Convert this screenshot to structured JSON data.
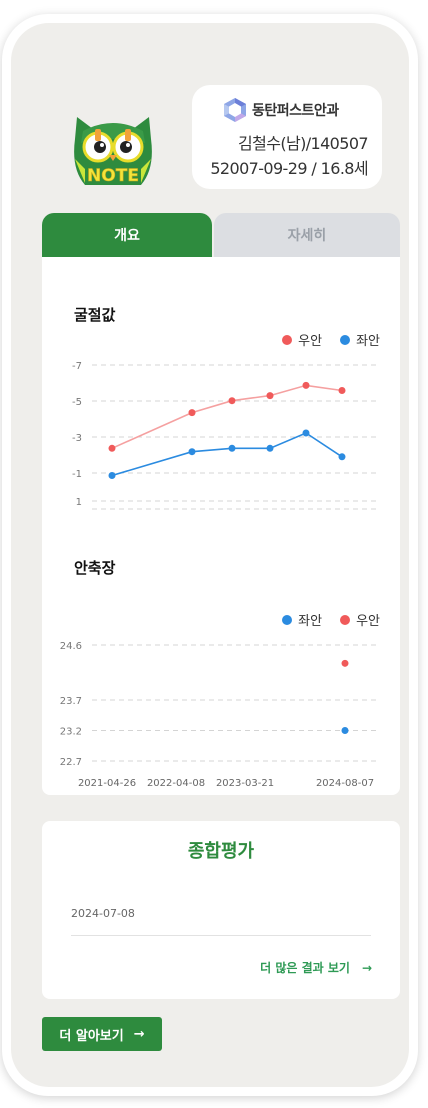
{
  "header": {
    "hospital_name": "동탄퍼스트안과",
    "patient_line1": "김철수(남)/140507",
    "patient_line2": "52007-09-29 / 16.8세",
    "logo_text": "NOTE"
  },
  "tabs": [
    {
      "label": "개요",
      "active": true
    },
    {
      "label": "자세히",
      "active": false
    }
  ],
  "colors": {
    "brand_green": "#2e8b3e",
    "right_eye": "#f05a5a",
    "left_eye": "#2b8be0"
  },
  "chart_data": [
    {
      "type": "line",
      "title": "굴절값",
      "y_ticks": [
        "-7",
        "-5",
        "-3",
        "-1",
        "1"
      ],
      "ylim": [
        1,
        -7
      ],
      "legend_position": "top-right",
      "grid": true,
      "series": [
        {
          "name": "우안",
          "color": "#f05a5a",
          "values": [
            -2.1,
            -4.2,
            -4.9,
            -5.2,
            -5.8,
            -5.5
          ]
        },
        {
          "name": "좌안",
          "color": "#2b8be0",
          "values": [
            -0.5,
            -1.9,
            -2.1,
            -2.1,
            -3.0,
            -1.6
          ]
        }
      ],
      "x_index": [
        0,
        1,
        2,
        3,
        4,
        5
      ]
    },
    {
      "type": "scatter",
      "title": "안축장",
      "y_ticks": [
        "24.6",
        "23.7",
        "23.2",
        "22.7"
      ],
      "ylim": [
        22.7,
        24.6
      ],
      "legend_position": "top-right",
      "grid": true,
      "x_labels": [
        "2021-04-26",
        "2022-04-08",
        "2023-03-21",
        "2024-08-07"
      ],
      "series": [
        {
          "name": "좌안",
          "color": "#2b8be0",
          "points": [
            {
              "x": "2024-08-07",
              "y": 23.2
            }
          ]
        },
        {
          "name": "우안",
          "color": "#f05a5a",
          "points": [
            {
              "x": "2024-08-07",
              "y": 24.3
            }
          ]
        }
      ]
    }
  ],
  "summary": {
    "title": "종합평가",
    "date": "2024-07-08",
    "more_label": "더 많은 결과 보기"
  },
  "learn_more_label": "더 알아보기"
}
